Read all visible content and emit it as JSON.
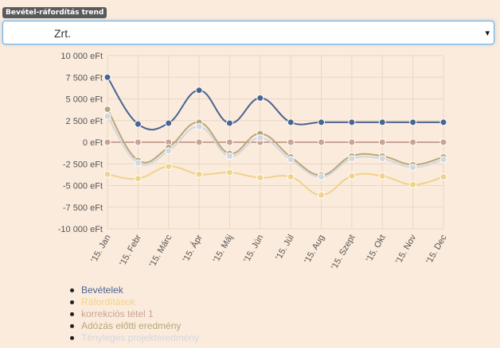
{
  "header": {
    "badge": "Bevétel-ráfordítás trend"
  },
  "select": {
    "value": "Zrt.",
    "arrow": "▾"
  },
  "chart_data": {
    "type": "line",
    "categories": [
      "'15. Jan",
      "'15. Febr",
      "'15. Márc",
      "'15. Ápr",
      "'15. Máj",
      "'15. Jún",
      "'15. Júl",
      "'15. Aug",
      "'15. Szept",
      "'15. Okt",
      "'15. Nov",
      "'15. Dec"
    ],
    "y_ticks": [
      "10 000 eFt",
      "7 500 eFt",
      "5 000 eFt",
      "2 500 eFt",
      "0 eFt",
      "-2 500 eFt",
      "-5 000 eFt",
      "-7 500 eFt",
      "-10 000 eFt"
    ],
    "ylim": [
      -10000,
      10000
    ],
    "grid": true,
    "legend_position": "bottom",
    "series": [
      {
        "name": "Bevételek",
        "color": "#4a6491",
        "values": [
          7500,
          2100,
          2200,
          6000,
          2200,
          5100,
          2300,
          2300,
          2300,
          2300,
          2300,
          2300
        ]
      },
      {
        "name": "Ráfordítások",
        "color": "#f0d28c",
        "values": [
          -3700,
          -4200,
          -2800,
          -3700,
          -3500,
          -4100,
          -4000,
          -6100,
          -3900,
          -3900,
          -4900,
          -4000
        ]
      },
      {
        "name": "korrekciós tétel 1",
        "color": "#c9a393",
        "values": [
          0,
          0,
          0,
          0,
          0,
          0,
          0,
          0,
          0,
          0,
          0,
          0
        ]
      },
      {
        "name": "Adózás előtti eredmény",
        "color": "#b8a67a",
        "values": [
          3800,
          -2100,
          -600,
          2300,
          -1300,
          1000,
          -1700,
          -3800,
          -1600,
          -1600,
          -2600,
          -1700
        ]
      },
      {
        "name": "Tényleges projekteredmény",
        "color": "#d3d7dd",
        "values": [
          3000,
          -2400,
          -1000,
          1800,
          -1600,
          500,
          -2000,
          -4000,
          -1900,
          -1900,
          -2900,
          -2000
        ]
      }
    ]
  }
}
